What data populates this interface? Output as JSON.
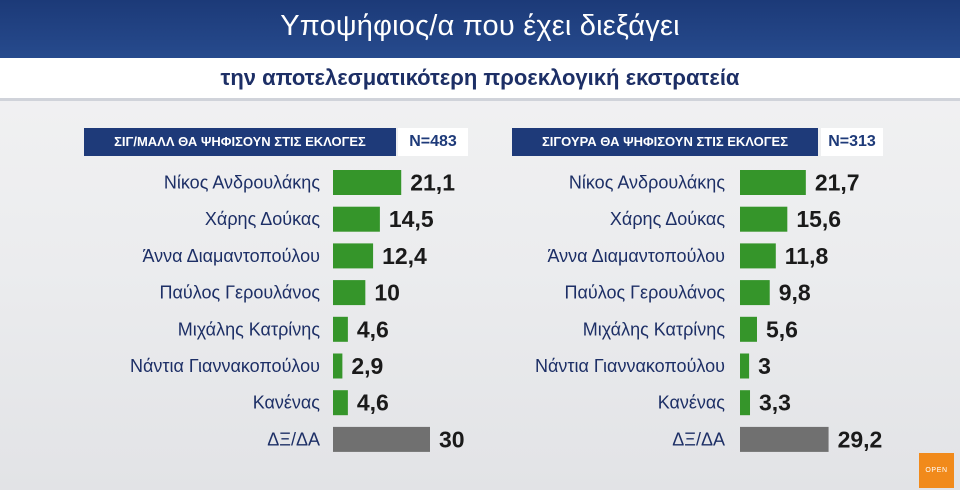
{
  "header": {
    "title": "Υποψήφιος/α που έχει διεξάγει",
    "subtitle": "την αποτελεσματικότερη προεκλογική εκστρατεία"
  },
  "colors": {
    "header_blue": "#1e3a79",
    "candidate_bar": "#35952a",
    "undecided_bar": "#707070"
  },
  "logo": {
    "text": "OPEN"
  },
  "chart_data": [
    {
      "type": "bar",
      "orientation": "horizontal",
      "title": "ΣΙΓ/ΜΑΛΛ ΘΑ ΨΗΦΙΣΟΥΝ ΣΤΙΣ ΕΚΛΟΓΕΣ",
      "sample": "N=483",
      "categories": [
        "Νίκος Ανδρουλάκης",
        "Χάρης Δούκας",
        "Άννα Διαμαντοπούλου",
        "Παύλος Γερουλάνος",
        "Μιχάλης Κατρίνης",
        "Νάντια Γιαννακοπούλου",
        "Κανένας",
        "ΔΞ/ΔΑ"
      ],
      "values": [
        21.1,
        14.5,
        12.4,
        10,
        4.6,
        2.9,
        4.6,
        30
      ],
      "value_labels": [
        "21,1",
        "14,5",
        "12,4",
        "10",
        "4,6",
        "2,9",
        "4,6",
        "30"
      ],
      "xlim": [
        0,
        30
      ],
      "grid": false
    },
    {
      "type": "bar",
      "orientation": "horizontal",
      "title": "ΣΙΓΟΥΡΑ ΘΑ ΨΗΦΙΣΟΥΝ ΣΤΙΣ ΕΚΛΟΓΕΣ",
      "sample": "N=313",
      "categories": [
        "Νίκος Ανδρουλάκης",
        "Χάρης Δούκας",
        "Άννα Διαμαντοπούλου",
        "Παύλος Γερουλάνος",
        "Μιχάλης Κατρίνης",
        "Νάντια Γιαννακοπούλου",
        "Κανένας",
        "ΔΞ/ΔΑ"
      ],
      "values": [
        21.7,
        15.6,
        11.8,
        9.8,
        5.6,
        3,
        3.3,
        29.2
      ],
      "value_labels": [
        "21,7",
        "15,6",
        "11,8",
        "9,8",
        "5,6",
        "3",
        "3,3",
        "29,2"
      ],
      "xlim": [
        0,
        30
      ],
      "grid": false
    }
  ]
}
